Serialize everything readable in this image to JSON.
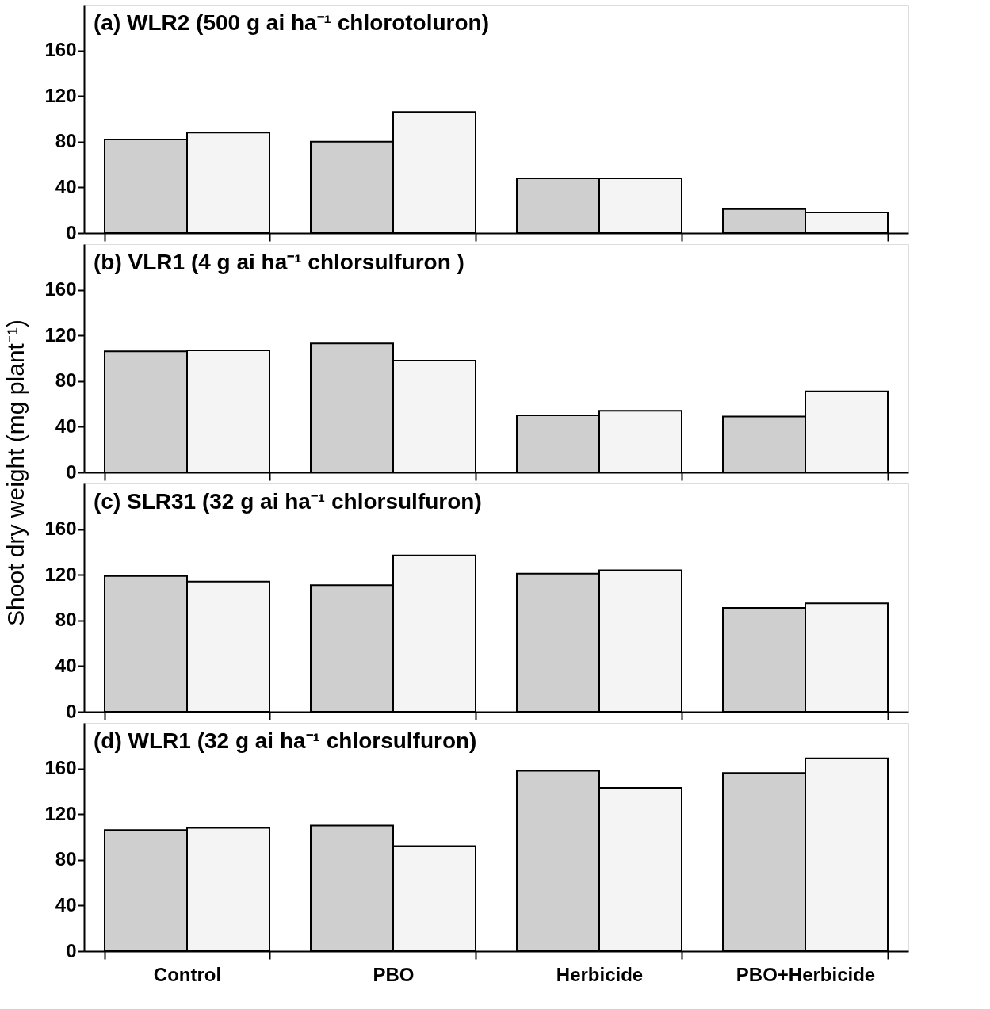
{
  "chart_data": [
    {
      "type": "bar",
      "title": "(a)  WLR2  (500 g ai ha⁻¹ chlorotoluron)",
      "categories": [
        null,
        null,
        null,
        null
      ],
      "series": [
        {
          "color": "#cfcfcf",
          "values": [
            82,
            80,
            48,
            21
          ]
        },
        {
          "color": "#f4f4f4",
          "values": [
            88,
            106,
            48,
            18
          ]
        }
      ],
      "ylim": [
        0,
        200
      ],
      "yticks": [
        0,
        40,
        80,
        120,
        160
      ],
      "grid": false,
      "legend": false,
      "tick_labels": "y"
    },
    {
      "type": "bar",
      "title": "(b)  VLR1  (4 g ai ha⁻¹ chlorsulfuron )",
      "ylabel": "Shoot dry weight (mg plant⁻¹)",
      "categories": [
        null,
        null,
        null,
        null
      ],
      "series": [
        {
          "color": "#cfcfcf",
          "values": [
            106,
            113,
            50,
            49
          ]
        },
        {
          "color": "#f4f4f4",
          "values": [
            107,
            98,
            54,
            71
          ]
        }
      ],
      "ylim": [
        0,
        200
      ],
      "yticks": [
        0,
        40,
        80,
        120,
        160
      ],
      "grid": false,
      "legend": false,
      "tick_labels": "y"
    },
    {
      "type": "bar",
      "title": "(c)  SLR31  (32 g ai ha⁻¹ chlorsulfuron)",
      "categories": [
        null,
        null,
        null,
        null
      ],
      "series": [
        {
          "color": "#cfcfcf",
          "values": [
            119,
            111,
            121,
            91
          ]
        },
        {
          "color": "#f4f4f4",
          "values": [
            114,
            137,
            124,
            95
          ]
        }
      ],
      "ylim": [
        0,
        200
      ],
      "yticks": [
        0,
        40,
        80,
        120,
        160
      ],
      "grid": false,
      "legend": false,
      "tick_labels": "y"
    },
    {
      "type": "bar",
      "title": "(d)  WLR1  (32 g ai ha⁻¹ chlorsulfuron)",
      "categories": [
        "Control",
        "PBO",
        "Herbicide",
        "PBO+Herbicide"
      ],
      "series": [
        {
          "color": "#cfcfcf",
          "values": [
            106,
            110,
            158,
            156
          ]
        },
        {
          "color": "#f4f4f4",
          "values": [
            108,
            92,
            143,
            169
          ]
        }
      ],
      "ylim": [
        0,
        200
      ],
      "yticks": [
        0,
        40,
        80,
        120,
        160
      ],
      "grid": false,
      "legend": false
    }
  ]
}
